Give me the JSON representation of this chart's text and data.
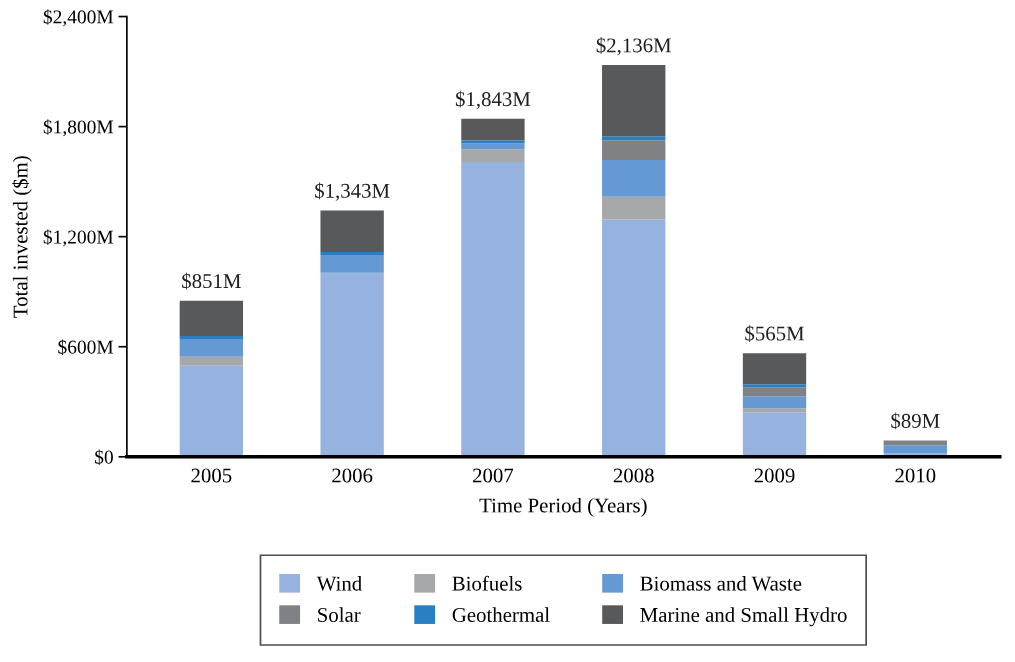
{
  "chart_data": {
    "type": "bar",
    "stacked": true,
    "xlabel": "Time Period (Years)",
    "ylabel": "Total invested ($m)",
    "categories": [
      "2005",
      "2006",
      "2007",
      "2008",
      "2009",
      "2010"
    ],
    "series": [
      {
        "name": "Wind",
        "color": "#95b3de",
        "values": [
          496,
          1003,
          1607,
          1294,
          243,
          20
        ]
      },
      {
        "name": "Biofuels",
        "color": "#a7a8aa",
        "values": [
          49,
          0,
          70,
          124,
          22,
          0
        ]
      },
      {
        "name": "Biomass and Waste",
        "color": "#6599d3",
        "values": [
          97,
          97,
          32,
          200,
          65,
          43
        ]
      },
      {
        "name": "Solar",
        "color": "#808184",
        "values": [
          0,
          0,
          0,
          108,
          49,
          26
        ]
      },
      {
        "name": "Geothermal",
        "color": "#2a7fc4",
        "values": [
          16,
          16,
          15,
          22,
          16,
          0
        ]
      },
      {
        "name": "Marine and Small Hydro",
        "color": "#58595b",
        "values": [
          193,
          227,
          119,
          388,
          170,
          0
        ]
      }
    ],
    "totals": [
      "$851M",
      "$1,343M",
      "$1,843M",
      "$2,136M",
      "$565M",
      "$89M"
    ],
    "ylim": [
      0,
      2400
    ],
    "yticks": [
      {
        "value": 0,
        "label": "$0"
      },
      {
        "value": 600,
        "label": "$600M"
      },
      {
        "value": 1200,
        "label": "$1,200M"
      },
      {
        "value": 1800,
        "label": "$1,800M"
      },
      {
        "value": 2400,
        "label": "$2,400M"
      }
    ],
    "grid": false,
    "legend": "bottom"
  }
}
